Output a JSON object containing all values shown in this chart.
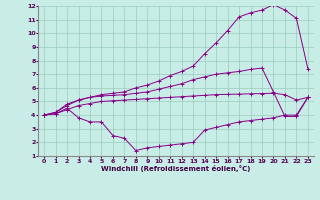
{
  "xlabel": "Windchill (Refroidissement éolien,°C)",
  "background_color": "#c8ece6",
  "line_color": "#880088",
  "grid_color": "#99ccbb",
  "xlim": [
    -0.5,
    23.5
  ],
  "ylim": [
    1,
    12
  ],
  "yticks": [
    1,
    2,
    3,
    4,
    5,
    6,
    7,
    8,
    9,
    10,
    11,
    12
  ],
  "xticks": [
    0,
    1,
    2,
    3,
    4,
    5,
    6,
    7,
    8,
    9,
    10,
    11,
    12,
    13,
    14,
    15,
    16,
    17,
    18,
    19,
    20,
    21,
    22,
    23
  ],
  "line1_x": [
    0,
    1,
    2,
    3,
    4,
    5,
    6,
    7,
    8,
    9,
    10,
    11,
    12,
    13,
    14,
    15,
    16,
    17,
    18,
    19,
    20,
    21,
    22,
    23
  ],
  "line1_y": [
    4.0,
    4.1,
    4.4,
    4.7,
    4.85,
    5.0,
    5.05,
    5.1,
    5.15,
    5.2,
    5.25,
    5.3,
    5.35,
    5.4,
    5.45,
    5.5,
    5.52,
    5.54,
    5.56,
    5.58,
    5.6,
    5.5,
    5.1,
    5.3
  ],
  "line2_x": [
    0,
    1,
    2,
    3,
    4,
    5,
    6,
    7,
    8,
    9,
    10,
    11,
    12,
    13,
    14,
    15,
    16,
    17,
    18,
    19,
    20,
    21,
    22,
    23
  ],
  "line2_y": [
    4.0,
    4.2,
    4.7,
    5.1,
    5.3,
    5.4,
    5.45,
    5.5,
    5.6,
    5.7,
    5.9,
    6.1,
    6.3,
    6.6,
    6.8,
    7.0,
    7.1,
    7.2,
    7.35,
    7.45,
    5.7,
    3.9,
    3.9,
    5.3
  ],
  "line3_x": [
    0,
    1,
    2,
    3,
    4,
    5,
    6,
    7,
    8,
    9,
    10,
    11,
    12,
    13,
    14,
    15,
    16,
    17,
    18,
    19,
    20,
    21,
    22,
    23
  ],
  "line3_y": [
    4.0,
    4.2,
    4.8,
    5.1,
    5.3,
    5.5,
    5.6,
    5.7,
    6.0,
    6.2,
    6.5,
    6.9,
    7.2,
    7.6,
    8.5,
    9.3,
    10.2,
    11.2,
    11.5,
    11.7,
    12.1,
    11.7,
    11.1,
    7.4
  ],
  "line4_x": [
    0,
    1,
    2,
    3,
    4,
    5,
    6,
    7,
    8,
    9,
    10,
    11,
    12,
    13,
    14,
    15,
    16,
    17,
    18,
    19,
    20,
    21,
    22,
    23
  ],
  "line4_y": [
    4.0,
    4.1,
    4.5,
    3.8,
    3.5,
    3.5,
    2.5,
    2.3,
    1.4,
    1.6,
    1.7,
    1.8,
    1.9,
    2.0,
    2.9,
    3.1,
    3.3,
    3.5,
    3.6,
    3.7,
    3.8,
    4.0,
    4.0,
    5.3
  ]
}
